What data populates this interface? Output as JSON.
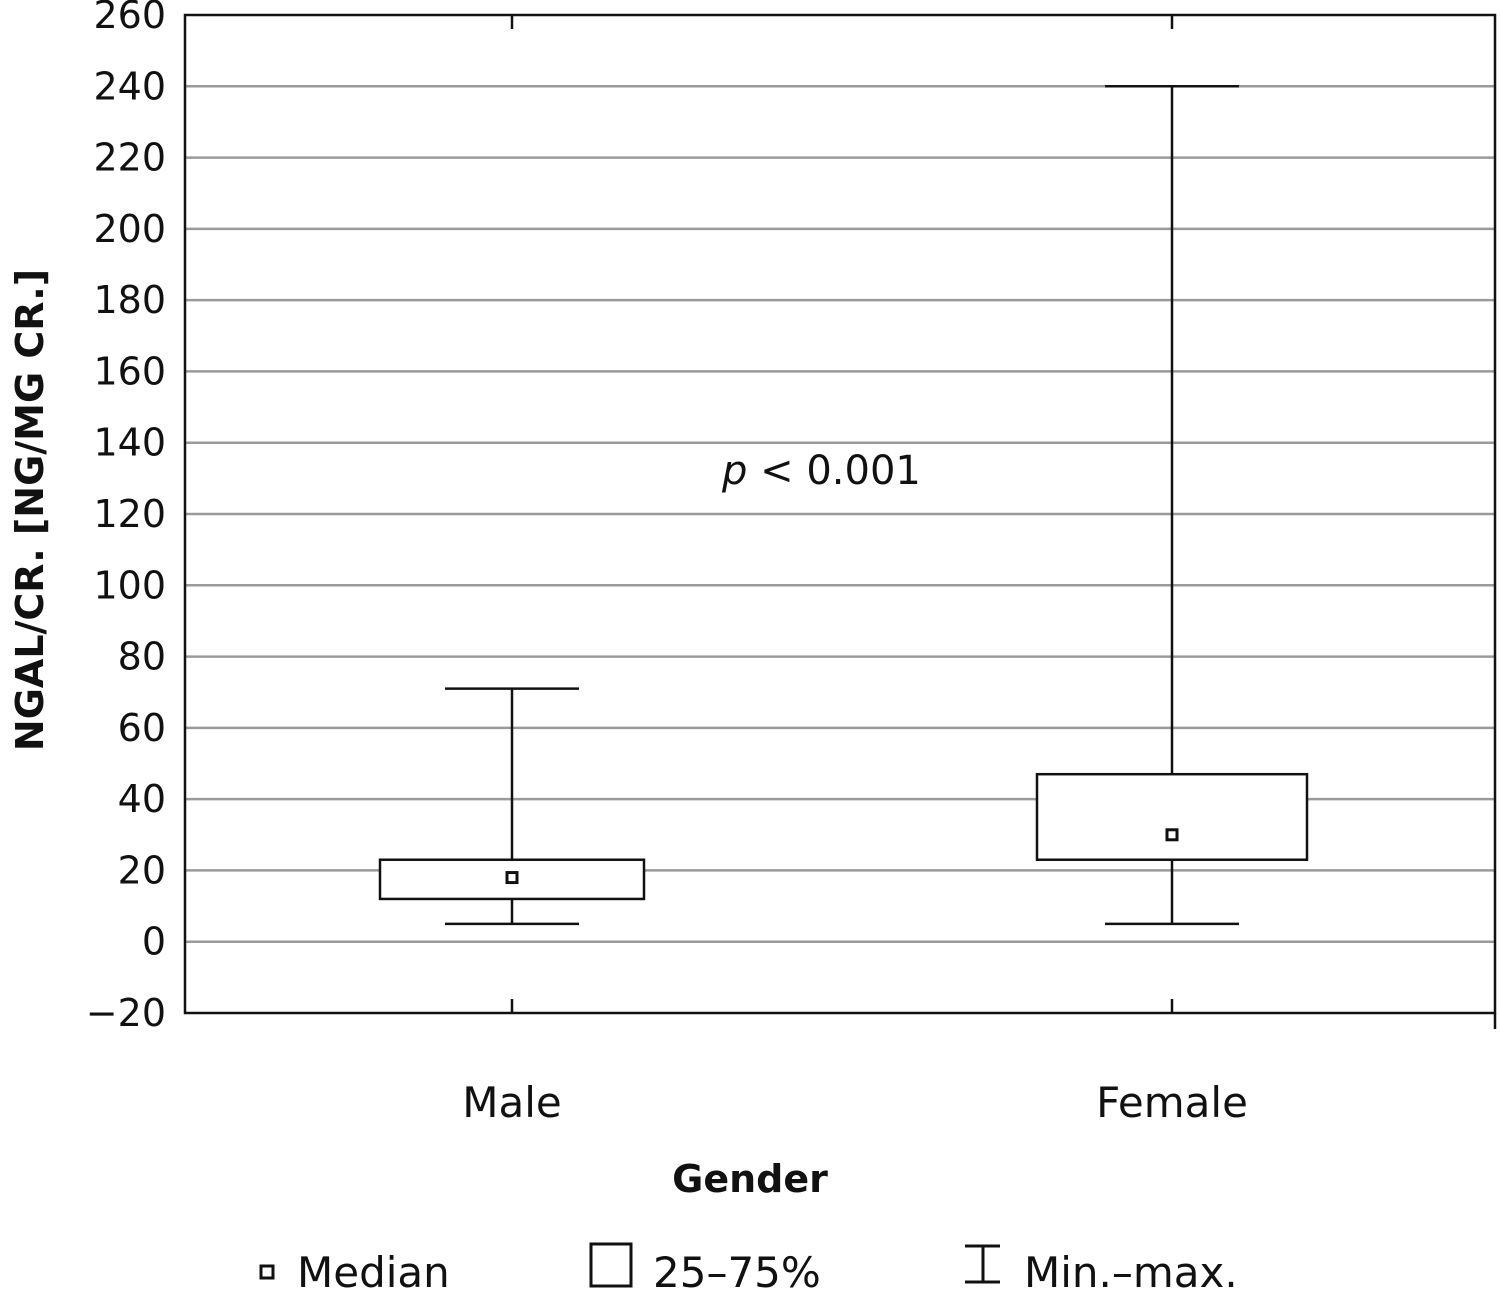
{
  "chart_data": {
    "type": "box",
    "xlabel": "Gender",
    "ylabel": "NGAL/CR. [NG/MG CR.]",
    "ylim": [
      -20,
      260
    ],
    "yticks": [
      -20,
      0,
      20,
      40,
      60,
      80,
      100,
      120,
      140,
      160,
      180,
      200,
      220,
      240,
      260
    ],
    "ytick_labels": [
      "−20",
      "0",
      "20",
      "40",
      "60",
      "80",
      "100",
      "120",
      "140",
      "160",
      "180",
      "200",
      "220",
      "240",
      "260"
    ],
    "grid": true,
    "categories": [
      "Male",
      "Female"
    ],
    "boxes": [
      {
        "category": "Male",
        "min": 5,
        "q1": 12,
        "median": 18,
        "q3": 23,
        "max": 71
      },
      {
        "category": "Female",
        "min": 5,
        "q1": 23,
        "median": 30,
        "q3": 47,
        "max": 240
      }
    ],
    "annotation": {
      "italic": "p",
      "text": " < 0.001",
      "x_between": [
        "Male",
        "Female"
      ],
      "y": 133
    },
    "legend": {
      "position": "bottom",
      "items": [
        {
          "symbol": "median-square",
          "label": "Median"
        },
        {
          "symbol": "box",
          "label": "25–75%"
        },
        {
          "symbol": "whisker",
          "label": "Min.–max."
        }
      ]
    },
    "colors": {
      "line": "#111111",
      "grid": "#9a9a9a",
      "background": "#ffffff"
    }
  }
}
